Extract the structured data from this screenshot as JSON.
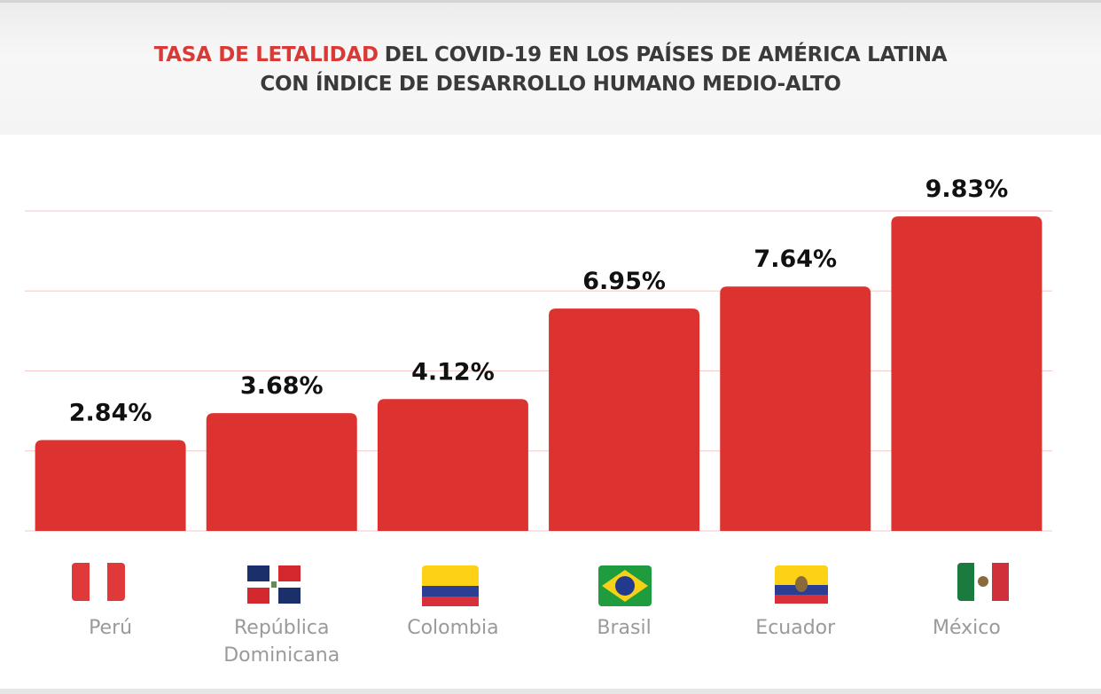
{
  "chart_data": {
    "type": "bar",
    "title_highlight": "TASA DE LETALIDAD",
    "title_highlight_color": "#d93a35",
    "title_lines": [
      "DEL COVID-19 EN LOS PAÍSES DE AMÉRICA LATINA",
      "CON ÍNDICE DE DESARROLLO HUMANO MEDIO-ALTO"
    ],
    "categories": [
      "Perú",
      "República Dominicana",
      "Colombia",
      "Brasil",
      "Ecuador",
      "México"
    ],
    "values": [
      2.84,
      3.68,
      4.12,
      6.95,
      7.64,
      9.83
    ],
    "value_labels": [
      "2.84%",
      "3.68%",
      "4.12%",
      "6.95%",
      "7.64%",
      "9.83%"
    ],
    "color": "#dd3330",
    "ylim": [
      0,
      10
    ],
    "yticks": [
      0,
      2.5,
      5,
      7.5,
      10
    ],
    "show_tick_labels": false,
    "grid": true,
    "grid_color": "#f0c9c8"
  }
}
